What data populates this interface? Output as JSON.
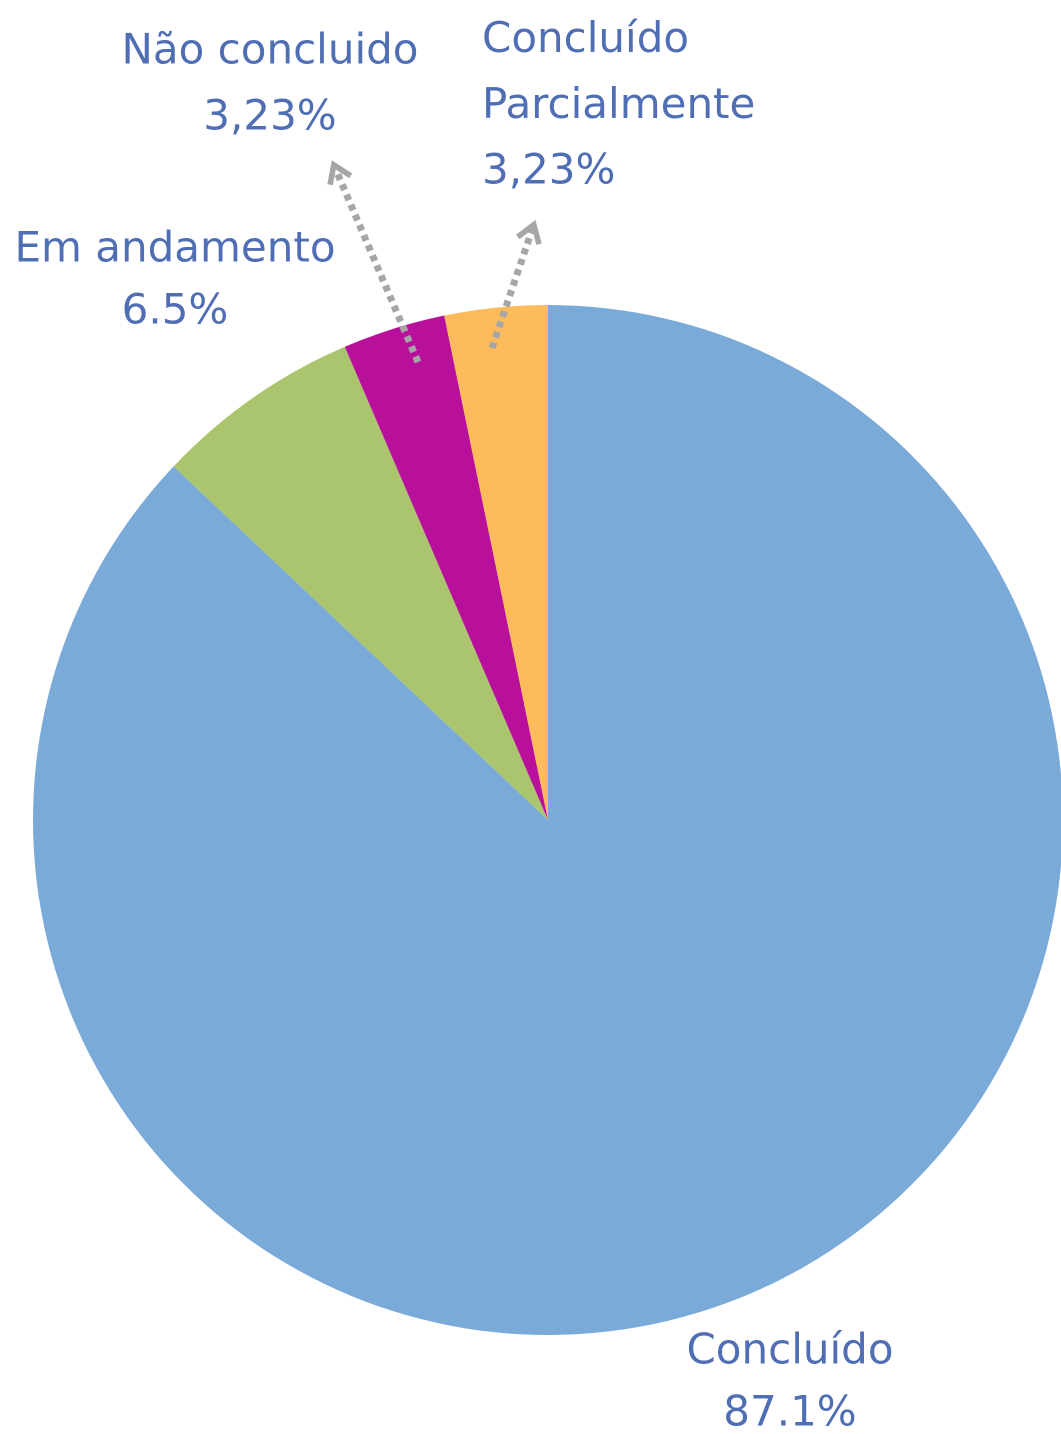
{
  "chart_data": {
    "type": "pie",
    "categories": [
      "Concluído",
      "Em andamento",
      "Não concluido",
      "Concluído Parcialmente"
    ],
    "values": [
      87.1,
      6.5,
      3.23,
      3.23
    ],
    "value_labels": [
      "87.1%",
      "6.5%",
      "3,23%",
      "3,23%"
    ],
    "colors": [
      "#7aaad8",
      "#abc56f",
      "#b9109b",
      "#fdbb5c"
    ]
  }
}
